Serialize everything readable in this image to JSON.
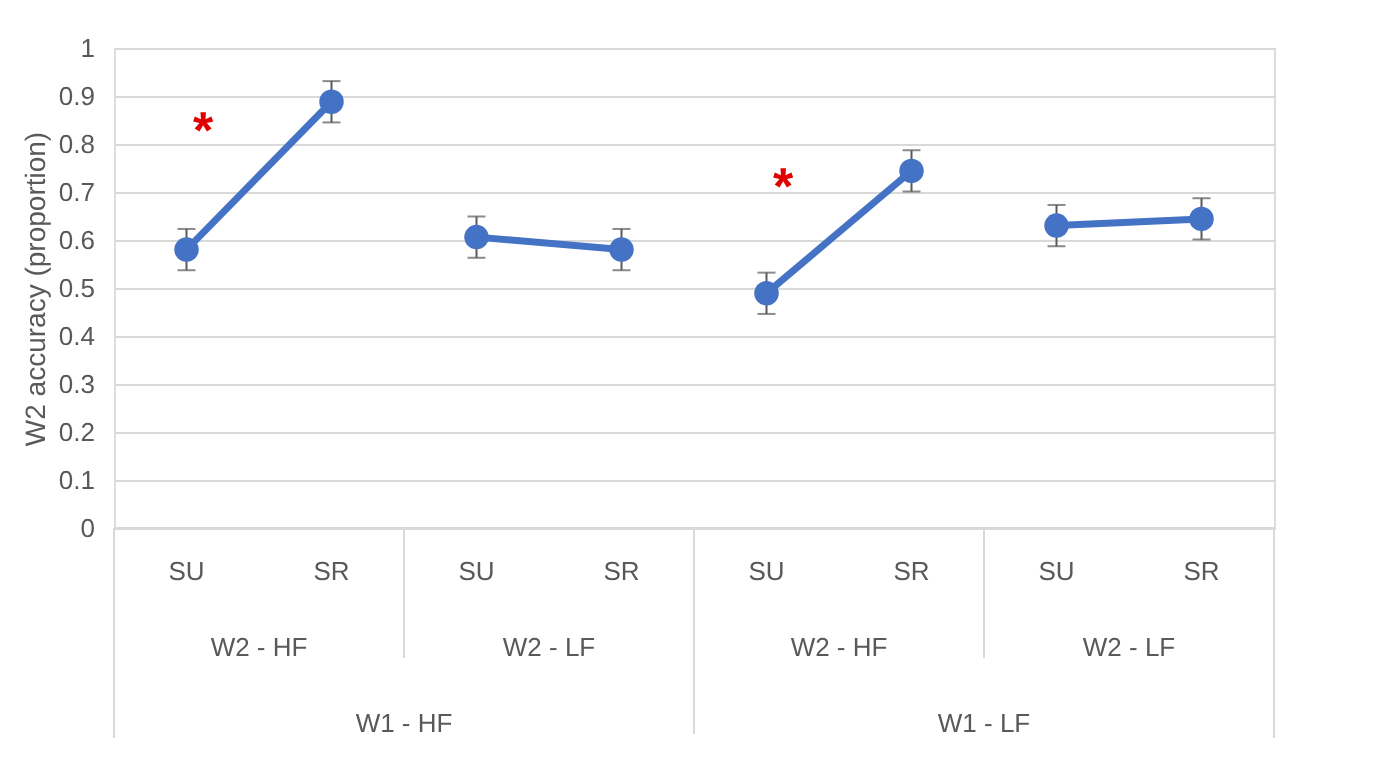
{
  "chart_data": {
    "type": "line",
    "ylabel": "W2 accuracy (proportion)",
    "categories": [
      "SU",
      "SR",
      "SU",
      "SR",
      "SU",
      "SR",
      "SU",
      "SR"
    ],
    "series": [
      {
        "color": "#4472c4",
        "values": [
          0.58,
          0.888,
          null,
          null,
          null,
          null,
          null,
          null
        ],
        "errors": [
          0.043,
          0.043,
          null,
          null,
          null,
          null,
          null,
          null
        ]
      },
      {
        "color": "#4472c4",
        "values": [
          null,
          null,
          0.606,
          0.58,
          null,
          null,
          null,
          null
        ],
        "errors": [
          null,
          null,
          0.043,
          0.043,
          null,
          null,
          null,
          null
        ]
      },
      {
        "color": "#4472c4",
        "values": [
          null,
          null,
          null,
          null,
          0.489,
          0.744,
          null,
          null
        ],
        "errors": [
          null,
          null,
          null,
          null,
          0.043,
          0.043,
          null,
          null
        ]
      },
      {
        "color": "#4472c4",
        "values": [
          null,
          null,
          null,
          null,
          null,
          null,
          0.63,
          0.644
        ],
        "errors": [
          null,
          null,
          null,
          null,
          null,
          null,
          0.043,
          0.043
        ]
      }
    ],
    "ylim": [
      0,
      1
    ],
    "yticks": [
      0,
      0.1,
      0.2,
      0.3,
      0.4,
      0.5,
      0.6,
      0.7,
      0.8,
      0.9,
      1
    ],
    "grid": "y",
    "marker": "circle",
    "line_style": "solid",
    "legend": false,
    "annotations": [
      "W2 - HF",
      "W2 - LF",
      "W2 - HF",
      "W2 - LF",
      "W1 - HF",
      "W1 - LF",
      "*",
      "*"
    ]
  }
}
